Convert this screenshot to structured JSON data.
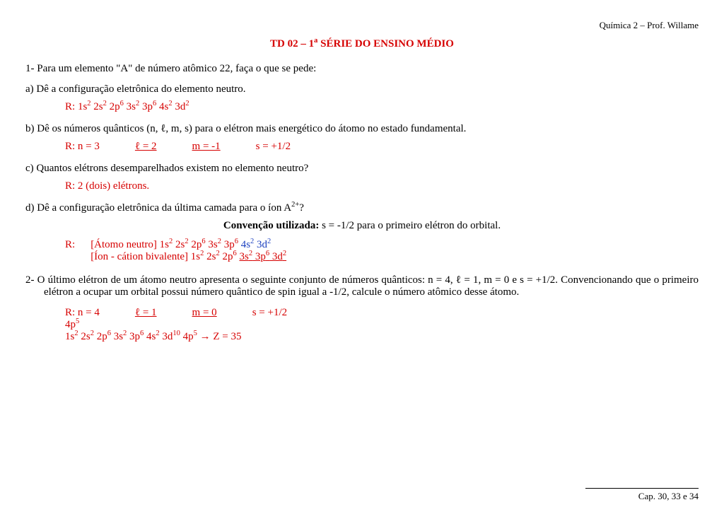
{
  "colors": {
    "text": "#000000",
    "answer": "#d60000",
    "accent_blue": "#1a3fbf",
    "background": "#ffffff"
  },
  "typography": {
    "body_fontsize": 15,
    "header_fontsize": 13,
    "footer_fontsize": 13,
    "font_family": "Georgia, serif"
  },
  "header": "Química 2 – Prof. Willame",
  "title_pre": "TD 02 – 1",
  "title_sup": "a",
  "title_post": " SÉRIE DO ENSINO MÉDIO",
  "q1": {
    "prompt": "1-  Para um elemento \"A\" de número atômico 22, faça o que se pede:",
    "a_prompt": "a)  Dê a configuração eletrônica do elemento neutro.",
    "a_ans_label": "R: ",
    "a_ans_config": [
      "1s",
      "2",
      " 2s",
      "2",
      " 2p",
      "6",
      " 3s",
      "2",
      " 3p",
      "6",
      " 4s",
      "2",
      " 3d",
      "2"
    ],
    "b_prompt": "b)  Dê os números quânticos (n, ℓ, m, s) para o elétron mais energético do átomo no estado fundamental.",
    "b_ans_parts": [
      "R:  n = 3",
      "ℓ = 2",
      "m = -1",
      "s = +1/2"
    ],
    "c_prompt": "c)  Quantos elétrons desemparelhados existem no elemento neutro?",
    "c_ans": "R: 2 (dois) elétrons.",
    "d_prompt_pre": "d)  Dê a configuração eletrônica da última camada para o íon A",
    "d_prompt_sup": "2+",
    "d_prompt_post": "?",
    "conv_label": "Convenção utilizada:",
    "conv_text": " s = -1/2 para o primeiro elétron do orbital.",
    "d_ans_label": "R:",
    "d_line1_label": "[Átomo neutro] ",
    "d_line1_red": [
      "1s",
      "2",
      " 2s",
      "2",
      " 2p",
      "6",
      " 3s",
      "2",
      " 3p",
      "6"
    ],
    "d_line1_blue": [
      " 4s",
      "2",
      " 3d",
      "2"
    ],
    "d_line2_label": "[Íon - cátion bivalente] ",
    "d_line2_a": [
      "1s",
      "2",
      " 2s",
      "2",
      " 2p",
      "6",
      " "
    ],
    "d_line2_u": [
      "3s",
      "2",
      " 3p",
      "6",
      " 3d",
      "2"
    ]
  },
  "q2": {
    "prompt": "2-  O último elétron de um átomo neutro apresenta o seguinte conjunto de números quânticos: n = 4, ℓ = 1, m = 0 e s = +1/2. Convencionando que o primeiro elétron a ocupar um orbital possui número quântico de spin igual a -1/2, calcule o número atômico desse átomo.",
    "ans_line1_parts": [
      "R:  n = 4",
      "ℓ = 1",
      "m = 0",
      "s = +1/2"
    ],
    "ans_line2": [
      "4p",
      "5"
    ],
    "ans_line3_config": [
      "1s",
      "2",
      " 2s",
      "2",
      " 2p",
      "6",
      " 3s",
      "2",
      " 3p",
      "6",
      " 4s",
      "2",
      " 3d",
      "10",
      " 4p",
      "5"
    ],
    "ans_line3_tail": " → Z = 35"
  },
  "footer": "Cap. 30, 33 e 34"
}
